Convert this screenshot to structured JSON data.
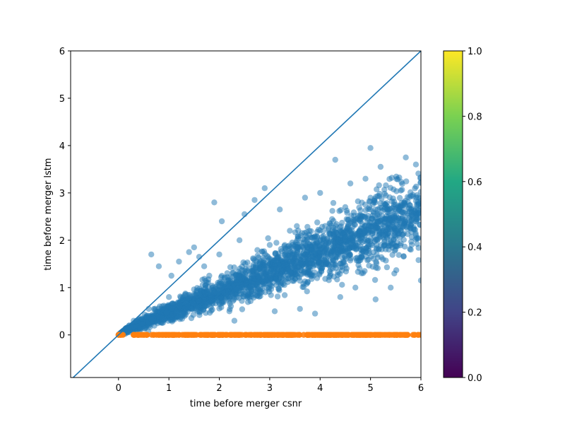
{
  "chart_data": {
    "type": "scatter",
    "title": "",
    "xlabel": "time before merger csnr",
    "ylabel": "time before merger lstm",
    "xlim": [
      -0.95,
      6.0
    ],
    "ylim": [
      -0.9,
      6.0
    ],
    "xticks": [
      "0",
      "1",
      "2",
      "3",
      "4",
      "5",
      "6"
    ],
    "yticks": [
      "0",
      "1",
      "2",
      "3",
      "4",
      "5",
      "6"
    ],
    "grid": false,
    "diagonal_line": {
      "x": [
        -0.95,
        6.0
      ],
      "y": [
        -0.95,
        6.0
      ],
      "color": "#1f77b4"
    },
    "series": [
      {
        "color": "#1f77b4",
        "alpha": 0.5,
        "approx_points": [
          [
            0.05,
            0.05
          ],
          [
            0.2,
            0.15
          ],
          [
            0.3,
            0.3
          ],
          [
            0.45,
            0.35
          ],
          [
            0.6,
            0.55
          ],
          [
            0.65,
            1.7
          ],
          [
            0.8,
            1.45
          ],
          [
            1.0,
            0.8
          ],
          [
            1.05,
            1.25
          ],
          [
            1.2,
            1.55
          ],
          [
            1.4,
            1.75
          ],
          [
            1.5,
            1.85
          ],
          [
            1.6,
            1.65
          ],
          [
            1.7,
            1.45
          ],
          [
            1.75,
            1.1
          ],
          [
            1.8,
            1.25
          ],
          [
            1.9,
            2.8
          ],
          [
            2.0,
            1.7
          ],
          [
            2.05,
            2.4
          ],
          [
            2.1,
            1.2
          ],
          [
            2.2,
            0.5
          ],
          [
            2.3,
            0.3
          ],
          [
            2.4,
            2.0
          ],
          [
            2.5,
            2.55
          ],
          [
            2.6,
            0.8
          ],
          [
            2.7,
            2.85
          ],
          [
            2.8,
            1.5
          ],
          [
            2.9,
            3.1
          ],
          [
            3.0,
            1.9
          ],
          [
            3.1,
            0.5
          ],
          [
            3.2,
            2.65
          ],
          [
            3.3,
            1.7
          ],
          [
            3.4,
            2.2
          ],
          [
            3.5,
            1.4
          ],
          [
            3.6,
            0.55
          ],
          [
            3.7,
            2.9
          ],
          [
            3.8,
            1.9
          ],
          [
            3.9,
            0.45
          ],
          [
            4.0,
            3.0
          ],
          [
            4.1,
            2.3
          ],
          [
            4.2,
            1.25
          ],
          [
            4.3,
            3.7
          ],
          [
            4.4,
            0.8
          ],
          [
            4.5,
            2.7
          ],
          [
            4.6,
            3.2
          ],
          [
            4.7,
            1.0
          ],
          [
            4.8,
            2.4
          ],
          [
            4.9,
            3.3
          ],
          [
            5.0,
            3.95
          ],
          [
            5.1,
            0.75
          ],
          [
            5.2,
            3.55
          ],
          [
            5.3,
            2.1
          ],
          [
            5.4,
            1.0
          ],
          [
            5.5,
            2.75
          ],
          [
            5.6,
            3.05
          ],
          [
            5.7,
            3.75
          ],
          [
            5.8,
            1.8
          ],
          [
            5.9,
            3.6
          ],
          [
            6.0,
            1.15
          ]
        ]
      },
      {
        "color": "#ff7f0e",
        "alpha": 0.9,
        "approx_points": [
          [
            0.0,
            0.0
          ],
          [
            1.0,
            0.0
          ],
          [
            2.0,
            0.0
          ],
          [
            3.0,
            0.0
          ],
          [
            4.0,
            0.0
          ],
          [
            5.0,
            0.0
          ],
          [
            6.0,
            0.0
          ]
        ]
      }
    ],
    "colorbar": {
      "colormap": "viridis",
      "range": [
        0.0,
        1.0
      ],
      "ticks": [
        "0.0",
        "0.2",
        "0.4",
        "0.6",
        "0.8",
        "1.0"
      ],
      "colors": [
        "#440154",
        "#414487",
        "#2a788e",
        "#22a884",
        "#7ad151",
        "#fde725"
      ]
    }
  }
}
